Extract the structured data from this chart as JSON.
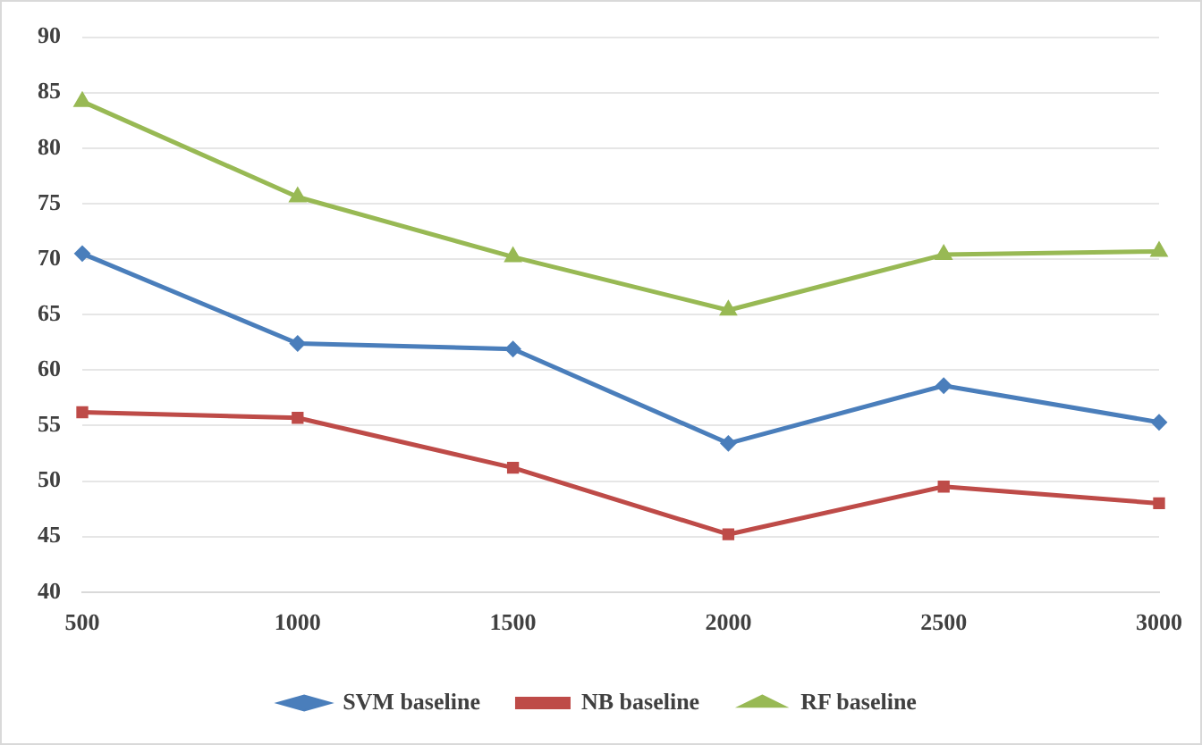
{
  "chart_data": {
    "type": "line",
    "categories": [
      "500",
      "1000",
      "1500",
      "2000",
      "2500",
      "3000"
    ],
    "series": [
      {
        "name": "SVM baseline",
        "color": "#4a7ebb",
        "marker": "diamond",
        "values": [
          70.5,
          62.4,
          61.9,
          53.4,
          58.6,
          55.3
        ]
      },
      {
        "name": "NB baseline",
        "color": "#be4b48",
        "marker": "square",
        "values": [
          56.2,
          55.7,
          51.2,
          45.2,
          49.5,
          48.0
        ]
      },
      {
        "name": "RF baseline",
        "color": "#98b954",
        "marker": "triangle",
        "values": [
          84.2,
          75.6,
          70.2,
          65.4,
          70.4,
          70.7
        ]
      }
    ],
    "ylim": [
      40,
      90
    ],
    "yticks": [
      40,
      45,
      50,
      55,
      60,
      65,
      70,
      75,
      80,
      85,
      90
    ],
    "grid": "y",
    "legend": "bottom",
    "line_style": "solid"
  }
}
